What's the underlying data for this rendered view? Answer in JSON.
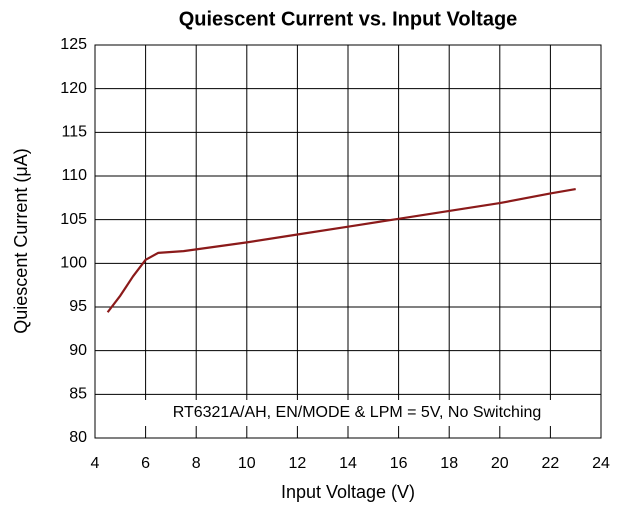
{
  "chart_data": {
    "type": "line",
    "title": "Quiescent Current vs. Input Voltage",
    "x_label": "Input Voltage (V)",
    "y_label": "Quiescent Current (μA)",
    "annotation": "RT6321A/AH, EN/MODE & LPM = 5V, No Switching",
    "x": [
      4.5,
      5,
      5.5,
      6,
      6.5,
      7,
      7.5,
      8,
      10,
      12,
      14,
      16,
      18,
      20,
      22,
      23
    ],
    "series": [
      {
        "name": "Quiescent Current",
        "color": "#8b1a1a",
        "values": [
          94.4,
          96.3,
          98.5,
          100.4,
          101.2,
          101.3,
          101.4,
          101.6,
          102.4,
          103.3,
          104.2,
          105.1,
          106.0,
          106.9,
          108.0,
          108.5
        ]
      }
    ],
    "xlim": [
      4,
      24
    ],
    "xticks": [
      4,
      6,
      8,
      10,
      12,
      14,
      16,
      18,
      20,
      22,
      24
    ],
    "ylim": [
      80,
      125
    ],
    "yticks": [
      80,
      85,
      90,
      95,
      100,
      105,
      110,
      115,
      120,
      125
    ],
    "grid": true
  }
}
